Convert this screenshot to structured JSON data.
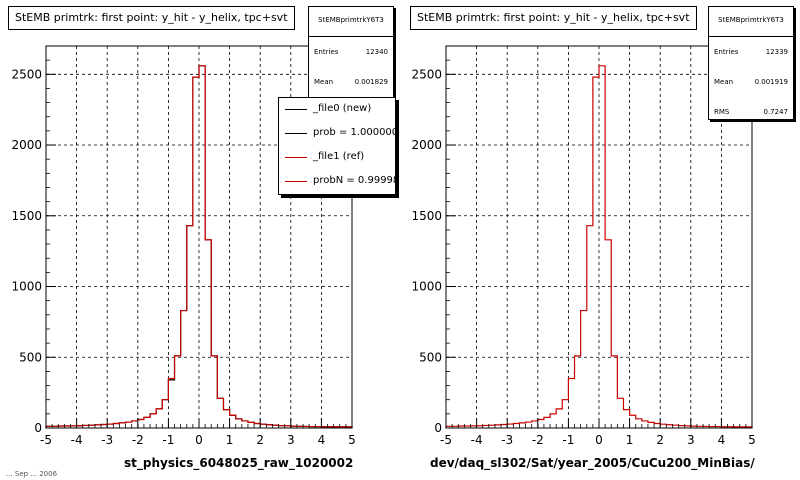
{
  "footer": "... Sep ... 2006",
  "colors": {
    "new": "#000000",
    "ref": "#cc0000",
    "grid": "#000000"
  },
  "panels": [
    {
      "title": "StEMB primtrk: first point: y_hit - y_helix, tpc+svt",
      "stats": {
        "name": "StEMBprimtrkY6T3",
        "rows": [
          {
            "label": "Entries",
            "value": "12340"
          },
          {
            "label": "Mean",
            "value": "0.001829"
          }
        ]
      },
      "legend": [
        {
          "label": "_file0 (new)",
          "color": "#000000"
        },
        {
          "label": "prob = 1.000000",
          "color": "#000000"
        },
        {
          "label": "_file1 (ref)",
          "color": "#cc0000"
        },
        {
          "label": "probN = 0.99998",
          "color": "#cc0000"
        }
      ],
      "xlabel": "st_physics_6048025_raw_1020002"
    },
    {
      "title": "StEMB primtrk: first point: y_hit - y_helix, tpc+svt",
      "stats": {
        "name": "StEMBprimtrkY6T3",
        "rows": [
          {
            "label": "Entries",
            "value": "12339"
          },
          {
            "label": "Mean",
            "value": "0.001919"
          },
          {
            "label": "RMS",
            "value": "0.7247"
          }
        ]
      },
      "legend": [],
      "xlabel": "dev/daq_sl302/Sat/year_2005/CuCu200_MinBias/"
    }
  ],
  "chart_data": [
    {
      "type": "histogram",
      "title": "StEMB primtrk: first point: y_hit - y_helix, tpc+svt",
      "xlabel": "st_physics_6048025_raw_1020002",
      "ylabel": "",
      "xlim": [
        -5,
        5
      ],
      "ylim": [
        0,
        2700
      ],
      "x_ticks": [
        -5,
        -4,
        -3,
        -2,
        -1,
        0,
        1,
        2,
        3,
        4,
        5
      ],
      "y_ticks": [
        0,
        500,
        1000,
        1500,
        2000,
        2500
      ],
      "grid": true,
      "bin_width": 0.2,
      "bin_centers": [
        -4.9,
        -4.7,
        -4.5,
        -4.3,
        -4.1,
        -3.9,
        -3.7,
        -3.5,
        -3.3,
        -3.1,
        -2.9,
        -2.7,
        -2.5,
        -2.3,
        -2.1,
        -1.9,
        -1.7,
        -1.5,
        -1.3,
        -1.1,
        -0.9,
        -0.7,
        -0.5,
        -0.3,
        -0.1,
        0.1,
        0.3,
        0.5,
        0.7,
        0.9,
        1.1,
        1.3,
        1.5,
        1.7,
        1.9,
        2.1,
        2.3,
        2.5,
        2.7,
        2.9,
        3.1,
        3.3,
        3.5,
        3.7,
        3.9,
        4.1,
        4.3,
        4.5,
        4.7,
        4.9
      ],
      "series": [
        {
          "name": "_file0 (new)",
          "color": "#000000",
          "values": [
            12,
            12,
            14,
            14,
            15,
            16,
            18,
            20,
            22,
            25,
            28,
            32,
            36,
            42,
            50,
            60,
            75,
            100,
            135,
            200,
            340,
            510,
            830,
            1430,
            2480,
            2560,
            1330,
            510,
            210,
            130,
            90,
            65,
            50,
            40,
            32,
            27,
            23,
            20,
            17,
            15,
            13,
            12,
            11,
            10,
            10,
            9,
            9,
            8,
            8,
            8
          ]
        },
        {
          "name": "_file1 (ref)",
          "color": "#cc0000",
          "values": [
            12,
            12,
            14,
            14,
            15,
            16,
            18,
            20,
            22,
            25,
            28,
            32,
            36,
            42,
            50,
            60,
            75,
            100,
            135,
            200,
            350,
            510,
            830,
            1430,
            2480,
            2560,
            1330,
            510,
            210,
            130,
            90,
            65,
            50,
            40,
            32,
            27,
            23,
            20,
            17,
            15,
            13,
            12,
            11,
            10,
            10,
            9,
            9,
            8,
            8,
            8
          ]
        }
      ]
    },
    {
      "type": "histogram",
      "title": "StEMB primtrk: first point: y_hit - y_helix, tpc+svt",
      "xlabel": "dev/daq_sl302/Sat/year_2005/CuCu200_MinBias/",
      "ylabel": "",
      "xlim": [
        -5,
        5
      ],
      "ylim": [
        0,
        2700
      ],
      "x_ticks": [
        -5,
        -4,
        -3,
        -2,
        -1,
        0,
        1,
        2,
        3,
        4,
        5
      ],
      "y_ticks": [
        0,
        500,
        1000,
        1500,
        2000,
        2500
      ],
      "grid": true,
      "bin_width": 0.2,
      "bin_centers": [
        -4.9,
        -4.7,
        -4.5,
        -4.3,
        -4.1,
        -3.9,
        -3.7,
        -3.5,
        -3.3,
        -3.1,
        -2.9,
        -2.7,
        -2.5,
        -2.3,
        -2.1,
        -1.9,
        -1.7,
        -1.5,
        -1.3,
        -1.1,
        -0.9,
        -0.7,
        -0.5,
        -0.3,
        -0.1,
        0.1,
        0.3,
        0.5,
        0.7,
        0.9,
        1.1,
        1.3,
        1.5,
        1.7,
        1.9,
        2.1,
        2.3,
        2.5,
        2.7,
        2.9,
        3.1,
        3.3,
        3.5,
        3.7,
        3.9,
        4.1,
        4.3,
        4.5,
        4.7,
        4.9
      ],
      "series": [
        {
          "name": "",
          "color": "#cc0000",
          "values": [
            12,
            12,
            14,
            14,
            15,
            16,
            18,
            20,
            22,
            25,
            28,
            32,
            36,
            42,
            50,
            60,
            75,
            100,
            135,
            200,
            350,
            510,
            830,
            1430,
            2480,
            2560,
            1330,
            510,
            210,
            130,
            90,
            65,
            50,
            40,
            32,
            27,
            23,
            20,
            17,
            15,
            13,
            12,
            11,
            10,
            10,
            9,
            9,
            8,
            8,
            8
          ]
        }
      ]
    }
  ]
}
